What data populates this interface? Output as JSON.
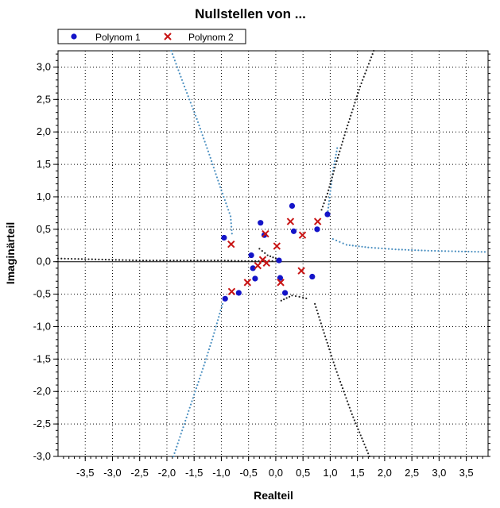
{
  "chart_data": {
    "type": "scatter",
    "title": "Nullstellen von ...",
    "xlabel": "Realteil",
    "ylabel": "Imaginärteil",
    "xlim": [
      -4.0,
      3.9
    ],
    "ylim": [
      -3.0,
      3.25
    ],
    "x_ticks": [
      -3.5,
      -3.0,
      -2.5,
      -2.0,
      -1.5,
      -1.0,
      -0.5,
      0.0,
      0.5,
      1.0,
      1.5,
      2.0,
      2.5,
      3.0,
      3.5
    ],
    "x_tick_labels": [
      "-3,5",
      "-3,0",
      "-2,5",
      "-2,0",
      "-1,5",
      "-1,0",
      "-0,5",
      "0,0",
      "0,5",
      "1,0",
      "1,5",
      "2,0",
      "2,5",
      "3,0",
      "3,5"
    ],
    "y_ticks": [
      -3.0,
      -2.5,
      -2.0,
      -1.5,
      -1.0,
      -0.5,
      0.0,
      0.5,
      1.0,
      1.5,
      2.0,
      2.5,
      3.0
    ],
    "y_tick_labels": [
      "-3,0",
      "-2,5",
      "-2,0",
      "-1,5",
      "-1,0",
      "-0,5",
      "0,0",
      "0,5",
      "1,0",
      "1,5",
      "2,0",
      "2,5",
      "3,0"
    ],
    "grid": true,
    "legend_position": "top-left",
    "watermark": "",
    "colors": {
      "polynom1": "#1414c8",
      "polynom2": "#c81414",
      "trace_blue": "#4a8fc0",
      "trace_black": "#202020",
      "zero_line": "#000000"
    },
    "series": [
      {
        "name": "Polynom 1",
        "marker": "circle",
        "points": [
          [
            -0.95,
            0.37
          ],
          [
            -0.93,
            -0.57
          ],
          [
            -0.68,
            -0.48
          ],
          [
            -0.45,
            0.1
          ],
          [
            -0.42,
            -0.1
          ],
          [
            -0.38,
            -0.26
          ],
          [
            -0.28,
            0.6
          ],
          [
            -0.21,
            0.41
          ],
          [
            0.06,
            0.02
          ],
          [
            0.08,
            -0.25
          ],
          [
            0.17,
            -0.48
          ],
          [
            0.3,
            0.86
          ],
          [
            0.33,
            0.47
          ],
          [
            0.67,
            -0.23
          ],
          [
            0.76,
            0.5
          ],
          [
            0.95,
            0.73
          ]
        ]
      },
      {
        "name": "Polynom 2",
        "marker": "x",
        "points": [
          [
            -0.82,
            0.27
          ],
          [
            -0.81,
            -0.46
          ],
          [
            -0.52,
            -0.32
          ],
          [
            -0.33,
            -0.06
          ],
          [
            -0.24,
            0.03
          ],
          [
            -0.19,
            0.43
          ],
          [
            -0.17,
            -0.02
          ],
          [
            0.02,
            0.24
          ],
          [
            0.09,
            -0.32
          ],
          [
            0.27,
            0.62
          ],
          [
            0.47,
            -0.14
          ],
          [
            0.49,
            0.41
          ],
          [
            0.77,
            0.62
          ]
        ]
      }
    ],
    "root_traces": [
      {
        "color": "blue",
        "points": [
          [
            -1.88,
            -3.0
          ],
          [
            -1.7,
            -2.55
          ],
          [
            -1.5,
            -2.05
          ],
          [
            -1.32,
            -1.6
          ],
          [
            -1.15,
            -1.15
          ],
          [
            -1.03,
            -0.8
          ],
          [
            -0.96,
            -0.6
          ]
        ]
      },
      {
        "color": "blue",
        "points": [
          [
            -1.92,
            3.25
          ],
          [
            -1.7,
            2.75
          ],
          [
            -1.45,
            2.2
          ],
          [
            -1.22,
            1.65
          ],
          [
            -1.02,
            1.15
          ],
          [
            -0.83,
            0.7
          ],
          [
            -0.8,
            0.38
          ]
        ]
      },
      {
        "color": "blue",
        "points": [
          [
            0.95,
            0.73
          ],
          [
            1.05,
            1.4
          ],
          [
            1.14,
            1.8
          ]
        ]
      },
      {
        "color": "blue",
        "points": [
          [
            1.05,
            0.35
          ],
          [
            1.3,
            0.26
          ],
          [
            1.7,
            0.22
          ],
          [
            2.2,
            0.19
          ],
          [
            2.8,
            0.17
          ],
          [
            3.3,
            0.16
          ],
          [
            3.9,
            0.15
          ]
        ]
      },
      {
        "color": "black",
        "points": [
          [
            -4.0,
            0.05
          ],
          [
            -3.5,
            0.04
          ],
          [
            -3.0,
            0.03
          ],
          [
            -2.5,
            0.02
          ],
          [
            -2.0,
            0.02
          ],
          [
            -1.5,
            0.02
          ],
          [
            -1.0,
            0.02
          ],
          [
            -0.5,
            0.01
          ],
          [
            0.0,
            0.01
          ]
        ]
      },
      {
        "color": "black",
        "points": [
          [
            1.72,
            -3.0
          ],
          [
            1.4,
            -2.35
          ],
          [
            1.1,
            -1.65
          ],
          [
            0.85,
            -1.0
          ],
          [
            0.7,
            -0.6
          ]
        ]
      },
      {
        "color": "black",
        "points": [
          [
            1.8,
            3.25
          ],
          [
            1.55,
            2.7
          ],
          [
            1.3,
            2.05
          ],
          [
            1.12,
            1.55
          ],
          [
            0.95,
            1.05
          ],
          [
            0.82,
            0.75
          ]
        ]
      },
      {
        "color": "black",
        "points": [
          [
            0.1,
            -0.6
          ],
          [
            0.3,
            -0.52
          ],
          [
            0.5,
            -0.55
          ],
          [
            0.62,
            -0.58
          ]
        ]
      },
      {
        "color": "black",
        "points": [
          [
            -0.3,
            0.2
          ],
          [
            -0.15,
            0.1
          ],
          [
            0.0,
            0.05
          ],
          [
            0.05,
            -0.02
          ]
        ]
      }
    ]
  }
}
